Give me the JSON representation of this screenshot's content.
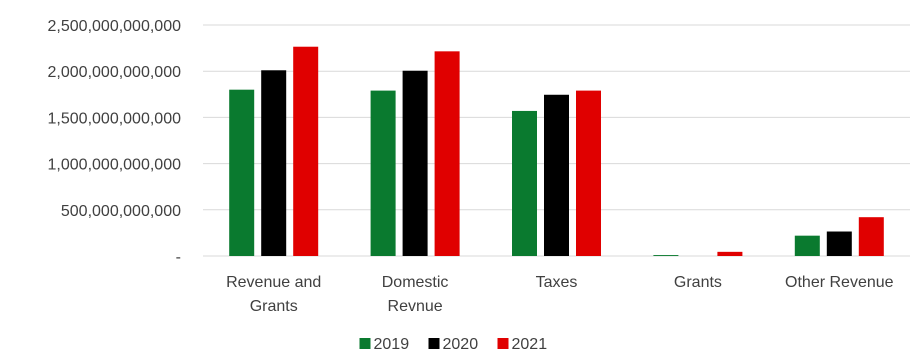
{
  "chart_data": {
    "type": "bar",
    "categories": [
      [
        "Revenue and",
        "Grants"
      ],
      [
        "Domestic",
        "Revnue"
      ],
      [
        "Taxes"
      ],
      [
        "Grants"
      ],
      [
        "Other Revenue"
      ]
    ],
    "series": [
      {
        "name": "2019",
        "color": "#0a7a2f",
        "values": [
          1800000000000,
          1790000000000,
          1570000000000,
          10000000000,
          220000000000
        ]
      },
      {
        "name": "2020",
        "color": "#000000",
        "values": [
          2010000000000,
          2005000000000,
          1745000000000,
          0,
          265000000000
        ]
      },
      {
        "name": "2021",
        "color": "#e00000",
        "values": [
          2265000000000,
          2215000000000,
          1790000000000,
          45000000000,
          420000000000
        ]
      }
    ],
    "yticks": [
      {
        "value": 0,
        "label": "-"
      },
      {
        "value": 500000000000,
        "label": "500,000,000,000"
      },
      {
        "value": 1000000000000,
        "label": "1,000,000,000,000"
      },
      {
        "value": 1500000000000,
        "label": "1,500,000,000,000"
      },
      {
        "value": 2000000000000,
        "label": "2,000,000,000,000"
      },
      {
        "value": 2500000000000,
        "label": "2,500,000,000,000"
      }
    ],
    "ylim": [
      0,
      2500000000000
    ],
    "grid": true,
    "legend": "bottom-center"
  }
}
